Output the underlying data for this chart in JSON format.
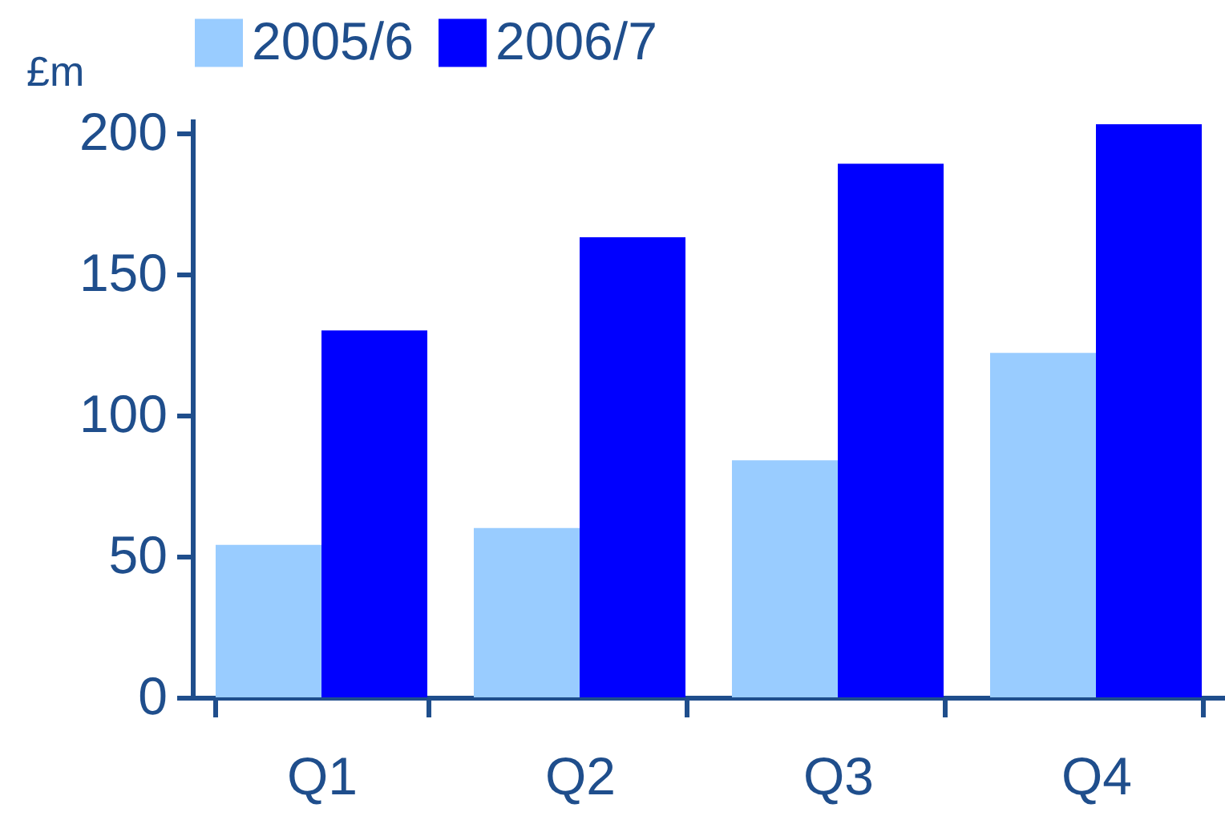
{
  "chart_data": {
    "type": "bar",
    "ylabel": "£m",
    "categories": [
      "Q1",
      "Q2",
      "Q3",
      "Q4"
    ],
    "series": [
      {
        "name": "2005/6",
        "color": "#99ccff",
        "values": [
          54,
          60,
          84,
          122
        ]
      },
      {
        "name": "2006/7",
        "color": "#0000ff",
        "values": [
          130,
          163,
          189,
          203
        ]
      }
    ],
    "ylim": [
      0,
      205
    ],
    "yticks": [
      0,
      50,
      100,
      150,
      200
    ],
    "grid": false,
    "legend": "top"
  }
}
